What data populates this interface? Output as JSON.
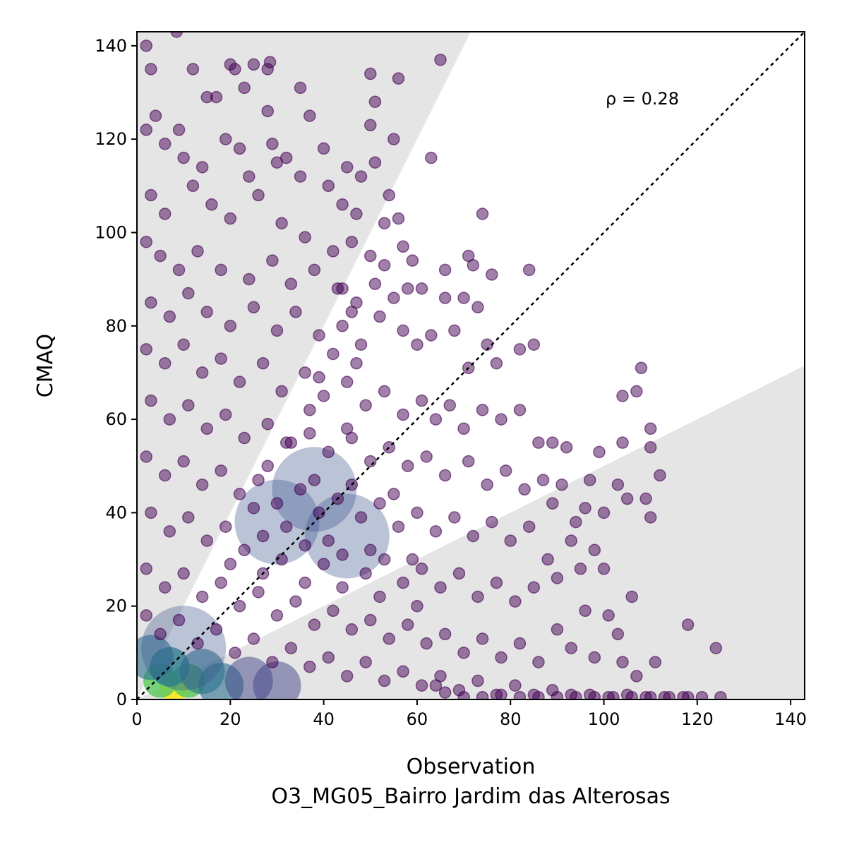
{
  "chart_data": {
    "type": "scatter",
    "title": "",
    "xlabel": "Observation",
    "xlabel_sub": "O3_MG05_Bairro Jardim das Alterosas",
    "ylabel": "CMAQ",
    "xlim": [
      0,
      143
    ],
    "ylim": [
      0,
      143
    ],
    "xticks": [
      "0",
      "20",
      "40",
      "60",
      "80",
      "100",
      "120",
      "140"
    ],
    "yticks": [
      "0",
      "20",
      "40",
      "60",
      "80",
      "100",
      "120",
      "140"
    ],
    "annotation": "ρ = 0.28",
    "identity_line": true,
    "shaded_region": "outside factor-of-2 band (y > 2x and y < x/2)",
    "grid": false,
    "colormap": "viridis (point density)",
    "colors": {
      "low_density": "#440154",
      "mid_density": "#3b528b",
      "high_density": "#21918c",
      "peak_density": "#fde725",
      "band_fill": "#e5e5e5"
    },
    "points": [
      [
        2,
        140
      ],
      [
        8.5,
        143
      ],
      [
        3,
        135
      ],
      [
        12,
        135
      ],
      [
        20,
        136
      ],
      [
        21,
        135
      ],
      [
        23,
        131
      ],
      [
        25,
        136
      ],
      [
        28,
        135
      ],
      [
        28.5,
        136.5
      ],
      [
        50,
        134
      ],
      [
        51,
        128
      ],
      [
        56,
        133
      ],
      [
        65,
        137
      ],
      [
        35,
        131
      ],
      [
        15,
        129
      ],
      [
        17,
        129
      ],
      [
        4,
        125
      ],
      [
        2,
        122
      ],
      [
        9,
        122
      ],
      [
        28,
        126
      ],
      [
        37,
        125
      ],
      [
        50,
        123
      ],
      [
        55,
        120
      ],
      [
        63,
        116
      ],
      [
        51,
        115
      ],
      [
        48,
        112
      ],
      [
        54,
        108
      ],
      [
        74,
        104
      ],
      [
        45,
        114
      ],
      [
        30,
        115
      ],
      [
        40,
        118
      ],
      [
        6,
        119
      ],
      [
        10,
        116
      ],
      [
        14,
        114
      ],
      [
        19,
        120
      ],
      [
        22,
        118
      ],
      [
        24,
        112
      ],
      [
        29,
        119
      ],
      [
        32,
        116
      ],
      [
        35,
        112
      ],
      [
        41,
        110
      ],
      [
        44,
        106
      ],
      [
        47,
        104
      ],
      [
        53,
        102
      ],
      [
        56,
        103
      ],
      [
        3,
        108
      ],
      [
        6,
        104
      ],
      [
        12,
        110
      ],
      [
        16,
        106
      ],
      [
        20,
        103
      ],
      [
        26,
        108
      ],
      [
        31,
        102
      ],
      [
        36,
        99
      ],
      [
        42,
        96
      ],
      [
        46,
        98
      ],
      [
        50,
        95
      ],
      [
        53,
        93
      ],
      [
        57,
        97
      ],
      [
        59,
        94
      ],
      [
        66,
        92
      ],
      [
        71,
        95
      ],
      [
        72,
        93
      ],
      [
        76,
        91
      ],
      [
        84,
        92
      ],
      [
        2,
        98
      ],
      [
        5,
        95
      ],
      [
        9,
        92
      ],
      [
        13,
        96
      ],
      [
        18,
        92
      ],
      [
        24,
        90
      ],
      [
        29,
        94
      ],
      [
        33,
        89
      ],
      [
        38,
        92
      ],
      [
        43,
        88
      ],
      [
        47,
        85
      ],
      [
        51,
        89
      ],
      [
        55,
        86
      ],
      [
        58,
        88
      ],
      [
        61,
        88
      ],
      [
        66,
        86
      ],
      [
        70,
        86
      ],
      [
        3,
        85
      ],
      [
        7,
        82
      ],
      [
        11,
        87
      ],
      [
        15,
        83
      ],
      [
        20,
        80
      ],
      [
        25,
        84
      ],
      [
        30,
        79
      ],
      [
        34,
        83
      ],
      [
        39,
        78
      ],
      [
        44,
        80
      ],
      [
        48,
        76
      ],
      [
        52,
        82
      ],
      [
        57,
        79
      ],
      [
        60,
        76
      ],
      [
        63,
        78
      ],
      [
        68,
        79
      ],
      [
        73,
        84
      ],
      [
        71,
        71
      ],
      [
        75,
        76
      ],
      [
        77,
        72
      ],
      [
        82,
        75
      ],
      [
        85,
        76
      ],
      [
        2,
        75
      ],
      [
        6,
        72
      ],
      [
        10,
        76
      ],
      [
        14,
        70
      ],
      [
        18,
        73
      ],
      [
        22,
        68
      ],
      [
        27,
        72
      ],
      [
        31,
        66
      ],
      [
        36,
        70
      ],
      [
        40,
        65
      ],
      [
        45,
        68
      ],
      [
        49,
        63
      ],
      [
        53,
        66
      ],
      [
        57,
        61
      ],
      [
        61,
        64
      ],
      [
        64,
        60
      ],
      [
        67,
        63
      ],
      [
        70,
        58
      ],
      [
        74,
        62
      ],
      [
        78,
        60
      ],
      [
        82,
        62
      ],
      [
        86,
        55
      ],
      [
        89,
        55
      ],
      [
        3,
        64
      ],
      [
        7,
        60
      ],
      [
        11,
        63
      ],
      [
        15,
        58
      ],
      [
        19,
        61
      ],
      [
        23,
        56
      ],
      [
        28,
        59
      ],
      [
        32,
        55
      ],
      [
        37,
        57
      ],
      [
        41,
        53
      ],
      [
        46,
        56
      ],
      [
        50,
        51
      ],
      [
        54,
        54
      ],
      [
        58,
        50
      ],
      [
        62,
        52
      ],
      [
        66,
        48
      ],
      [
        71,
        51
      ],
      [
        75,
        46
      ],
      [
        79,
        49
      ],
      [
        83,
        45
      ],
      [
        87,
        47
      ],
      [
        92,
        54
      ],
      [
        97,
        47
      ],
      [
        99,
        53
      ],
      [
        104,
        55
      ],
      [
        107,
        66
      ],
      [
        108,
        71
      ],
      [
        104,
        65
      ],
      [
        110,
        58
      ],
      [
        112,
        48
      ],
      [
        110,
        54
      ],
      [
        2,
        52
      ],
      [
        6,
        48
      ],
      [
        10,
        51
      ],
      [
        14,
        46
      ],
      [
        18,
        49
      ],
      [
        22,
        44
      ],
      [
        26,
        47
      ],
      [
        30,
        42
      ],
      [
        35,
        45
      ],
      [
        39,
        40
      ],
      [
        43,
        43
      ],
      [
        48,
        39
      ],
      [
        52,
        42
      ],
      [
        56,
        37
      ],
      [
        60,
        40
      ],
      [
        64,
        36
      ],
      [
        68,
        39
      ],
      [
        72,
        35
      ],
      [
        76,
        38
      ],
      [
        80,
        34
      ],
      [
        84,
        37
      ],
      [
        89,
        42
      ],
      [
        91,
        46
      ],
      [
        94,
        38
      ],
      [
        96,
        41
      ],
      [
        100,
        40
      ],
      [
        103,
        46
      ],
      [
        105,
        43
      ],
      [
        109,
        43
      ],
      [
        110,
        39
      ],
      [
        3,
        40
      ],
      [
        7,
        36
      ],
      [
        11,
        39
      ],
      [
        15,
        34
      ],
      [
        19,
        37
      ],
      [
        23,
        32
      ],
      [
        27,
        35
      ],
      [
        31,
        30
      ],
      [
        36,
        33
      ],
      [
        40,
        29
      ],
      [
        44,
        31
      ],
      [
        49,
        27
      ],
      [
        53,
        30
      ],
      [
        57,
        25
      ],
      [
        61,
        28
      ],
      [
        65,
        24
      ],
      [
        69,
        27
      ],
      [
        73,
        22
      ],
      [
        77,
        25
      ],
      [
        81,
        21
      ],
      [
        85,
        24
      ],
      [
        88,
        30
      ],
      [
        90,
        26
      ],
      [
        93,
        34
      ],
      [
        95,
        28
      ],
      [
        98,
        32
      ],
      [
        100,
        28
      ],
      [
        106,
        22
      ],
      [
        101,
        18
      ],
      [
        2,
        28
      ],
      [
        6,
        24
      ],
      [
        10,
        27
      ],
      [
        14,
        22
      ],
      [
        18,
        25
      ],
      [
        22,
        20
      ],
      [
        26,
        23
      ],
      [
        30,
        18
      ],
      [
        34,
        21
      ],
      [
        38,
        16
      ],
      [
        42,
        19
      ],
      [
        46,
        15
      ],
      [
        50,
        17
      ],
      [
        54,
        13
      ],
      [
        58,
        16
      ],
      [
        62,
        12
      ],
      [
        66,
        14
      ],
      [
        70,
        10
      ],
      [
        74,
        13
      ],
      [
        78,
        9
      ],
      [
        82,
        12
      ],
      [
        86,
        8
      ],
      [
        90,
        15
      ],
      [
        93,
        11
      ],
      [
        96,
        19
      ],
      [
        98,
        9
      ],
      [
        103,
        14
      ],
      [
        104,
        8
      ],
      [
        107,
        5
      ],
      [
        111,
        8
      ],
      [
        118,
        16
      ],
      [
        124,
        11
      ],
      [
        2,
        18
      ],
      [
        5,
        14
      ],
      [
        9,
        17
      ],
      [
        13,
        12
      ],
      [
        17,
        15
      ],
      [
        21,
        10
      ],
      [
        25,
        13
      ],
      [
        29,
        8
      ],
      [
        33,
        11
      ],
      [
        37,
        7
      ],
      [
        41,
        9
      ],
      [
        45,
        5
      ],
      [
        49,
        8
      ],
      [
        53,
        4
      ],
      [
        57,
        6
      ],
      [
        61,
        3
      ],
      [
        65,
        5
      ],
      [
        69,
        2
      ],
      [
        73,
        4
      ],
      [
        77,
        1
      ],
      [
        81,
        3
      ],
      [
        85,
        1
      ],
      [
        89,
        2
      ],
      [
        93,
        1
      ],
      [
        97,
        1
      ],
      [
        101,
        0.5
      ],
      [
        105,
        1
      ],
      [
        109,
        0.5
      ],
      [
        113,
        0.5
      ],
      [
        117,
        0.5
      ],
      [
        121,
        0.5
      ],
      [
        125,
        0.5
      ],
      [
        64,
        3
      ],
      [
        66,
        1.5
      ],
      [
        70,
        0.5
      ],
      [
        74,
        0.5
      ],
      [
        78,
        1
      ],
      [
        82,
        0.5
      ],
      [
        86,
        0.5
      ],
      [
        90,
        0.5
      ],
      [
        94,
        0.5
      ],
      [
        98,
        0.5
      ],
      [
        102,
        0.5
      ],
      [
        106,
        0.5
      ],
      [
        110,
        0.5
      ],
      [
        114,
        0.5
      ],
      [
        118,
        0.5
      ],
      [
        44,
        88
      ],
      [
        46,
        83
      ],
      [
        42,
        74
      ],
      [
        39,
        69
      ],
      [
        47,
        72
      ],
      [
        37,
        62
      ],
      [
        45,
        58
      ],
      [
        33,
        55
      ],
      [
        28,
        50
      ],
      [
        38,
        47
      ],
      [
        46,
        46
      ],
      [
        55,
        44
      ],
      [
        25,
        41
      ],
      [
        32,
        37
      ],
      [
        41,
        34
      ],
      [
        50,
        32
      ],
      [
        59,
        30
      ],
      [
        20,
        29
      ],
      [
        27,
        27
      ],
      [
        36,
        25
      ],
      [
        44,
        24
      ],
      [
        52,
        22
      ],
      [
        60,
        20
      ]
    ],
    "density_blobs": [
      {
        "x": 8,
        "y": 2.5,
        "level": "peak"
      },
      {
        "x": 5,
        "y": 4,
        "level": "high"
      },
      {
        "x": 11,
        "y": 4,
        "level": "high"
      },
      {
        "x": 7,
        "y": 7,
        "level": "mid-high"
      },
      {
        "x": 14,
        "y": 6,
        "level": "mid"
      },
      {
        "x": 3,
        "y": 9,
        "level": "mid"
      },
      {
        "x": 18,
        "y": 3,
        "level": "mid"
      },
      {
        "x": 10,
        "y": 11,
        "level": "mid-low"
      },
      {
        "x": 24,
        "y": 4,
        "level": "low"
      },
      {
        "x": 30,
        "y": 3,
        "level": "low"
      },
      {
        "x": 38,
        "y": 45,
        "level": "mid-low"
      },
      {
        "x": 45,
        "y": 35,
        "level": "mid-low"
      },
      {
        "x": 30,
        "y": 38,
        "level": "mid-low"
      }
    ]
  }
}
